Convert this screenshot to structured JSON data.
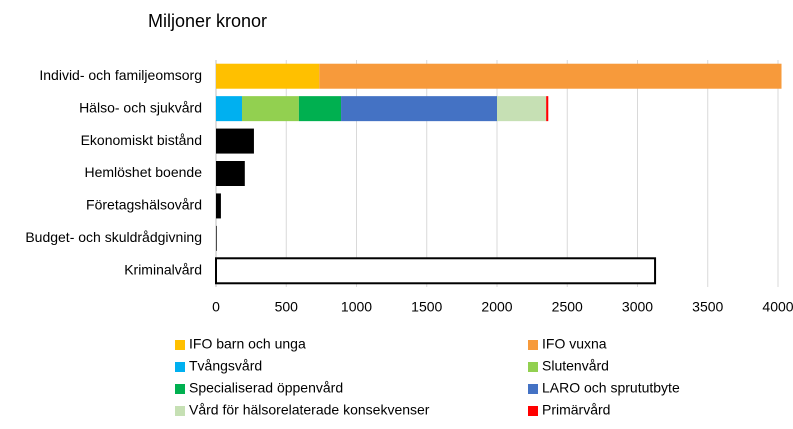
{
  "chart_data": {
    "type": "stacked_bar_horizontal",
    "title": "Miljoner kronor",
    "categories": [
      "Individ- och familjeomsorg",
      "Hälso- och sjukvård",
      "Ekonomiskt bistånd",
      "Hemlöshet boende",
      "Företagshälsovård",
      "Budget- och skuldrådgivning",
      "Kriminalvård"
    ],
    "series": [
      {
        "name": "IFO barn och unga",
        "color": "#ffc000",
        "values": [
          735,
          null,
          null,
          null,
          null,
          null,
          null
        ]
      },
      {
        "name": "IFO vuxna",
        "color": "#f79a3b",
        "values": [
          3290,
          null,
          null,
          null,
          null,
          null,
          null
        ]
      },
      {
        "name": "Tvångsvård",
        "color": "#00b0f0",
        "values": [
          null,
          185,
          null,
          null,
          null,
          null,
          null
        ]
      },
      {
        "name": "Slutenvård",
        "color": "#92d050",
        "values": [
          null,
          405,
          null,
          null,
          null,
          null,
          null
        ]
      },
      {
        "name": "Specialiserad öppenvård",
        "color": "#00b050",
        "values": [
          null,
          300,
          null,
          null,
          null,
          null,
          null
        ]
      },
      {
        "name": "LARO och sprututbyte",
        "color": "#4472c4",
        "values": [
          null,
          1110,
          null,
          null,
          null,
          null,
          null
        ]
      },
      {
        "name": "Vård för hälsorelaterade konsekvenser",
        "color": "#c6e0b4",
        "values": [
          null,
          350,
          null,
          null,
          null,
          null,
          null
        ]
      },
      {
        "name": "Primärvård",
        "color": "#ff0000",
        "values": [
          null,
          15,
          null,
          null,
          null,
          null,
          null
        ]
      },
      {
        "color": "#000000",
        "values": [
          null,
          null,
          270,
          205,
          35,
          5,
          null
        ]
      },
      {
        "color": "#ffffff",
        "stroke": "#000000",
        "values": [
          null,
          null,
          null,
          null,
          null,
          null,
          3125
        ]
      }
    ],
    "xlim": [
      0,
      4000
    ],
    "xticks": [
      0,
      500,
      1000,
      1500,
      2000,
      2500,
      3000,
      3500,
      4000
    ],
    "grid": true
  }
}
